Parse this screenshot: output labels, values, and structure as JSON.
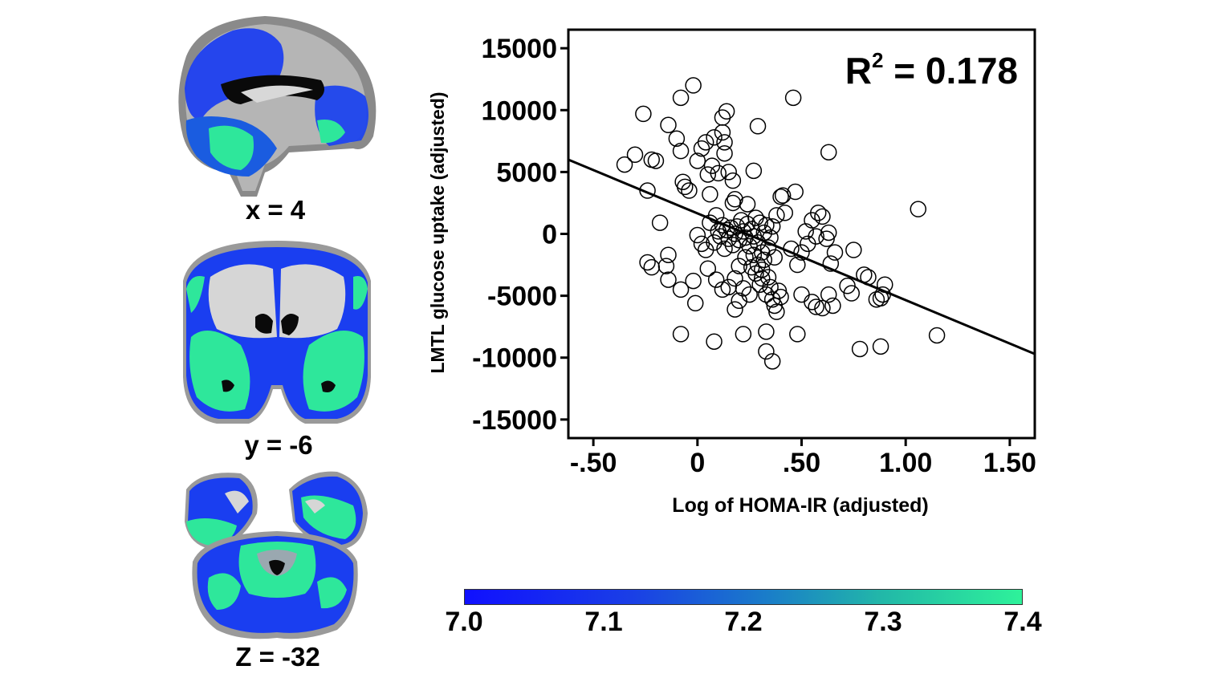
{
  "slices": [
    {
      "label": "x = 4"
    },
    {
      "label": "y = -6"
    },
    {
      "label": "Z = -32"
    }
  ],
  "colorbar": {
    "ticks": [
      "7.0",
      "7.1",
      "7.2",
      "7.3",
      "7.4"
    ],
    "colors": [
      "#1010ff",
      "#2ef29a"
    ]
  },
  "chart_data": {
    "type": "scatter",
    "xlabel": "Log of HOMA-IR (adjusted)",
    "ylabel": "LMTL glucose uptake (adjusted)",
    "annotation": {
      "prefix": "R",
      "superscript": "2",
      "text": " = 0.178"
    },
    "xlim": [
      -0.62,
      1.62
    ],
    "ylim": [
      -16500,
      16500
    ],
    "xticks": [
      -0.5,
      0,
      0.5,
      1.0,
      1.5
    ],
    "xtick_labels": [
      "-.50",
      "0",
      ".50",
      "1.00",
      "1.50"
    ],
    "yticks": [
      15000,
      10000,
      5000,
      0,
      -5000,
      -10000,
      -15000
    ],
    "ytick_labels": [
      "15000",
      "10000",
      "5000",
      "0",
      "-5000",
      "-10000",
      "-15000"
    ],
    "regression_line": {
      "x": [
        -0.62,
        1.62
      ],
      "y": [
        6000,
        -9700
      ]
    },
    "grid": false,
    "points": [
      [
        -0.35,
        5600
      ],
      [
        -0.3,
        6400
      ],
      [
        -0.26,
        9700
      ],
      [
        -0.24,
        3500
      ],
      [
        -0.22,
        6000
      ],
      [
        -0.2,
        5900
      ],
      [
        -0.24,
        -2300
      ],
      [
        -0.22,
        -2700
      ],
      [
        -0.18,
        900
      ],
      [
        -0.15,
        -2600
      ],
      [
        -0.14,
        -3700
      ],
      [
        -0.14,
        -1700
      ],
      [
        -0.14,
        8800
      ],
      [
        -0.1,
        7700
      ],
      [
        -0.08,
        6700
      ],
      [
        -0.08,
        11000
      ],
      [
        -0.02,
        12000
      ],
      [
        -0.07,
        4200
      ],
      [
        -0.06,
        3800
      ],
      [
        -0.04,
        3500
      ],
      [
        -0.08,
        -4500
      ],
      [
        -0.08,
        -8100
      ],
      [
        -0.02,
        -3800
      ],
      [
        -0.01,
        -5600
      ],
      [
        0.0,
        5900
      ],
      [
        0.02,
        6900
      ],
      [
        0.04,
        7400
      ],
      [
        0.05,
        4800
      ],
      [
        0.06,
        3200
      ],
      [
        0.07,
        5500
      ],
      [
        0.08,
        7800
      ],
      [
        0.1,
        4900
      ],
      [
        0.12,
        8200
      ],
      [
        0.13,
        7400
      ],
      [
        0.13,
        6500
      ],
      [
        0.12,
        9400
      ],
      [
        0.14,
        9900
      ],
      [
        0.15,
        5000
      ],
      [
        0.17,
        4300
      ],
      [
        0.18,
        2800
      ],
      [
        0.17,
        2500
      ],
      [
        0.0,
        -100
      ],
      [
        0.02,
        -800
      ],
      [
        0.04,
        -1300
      ],
      [
        0.06,
        900
      ],
      [
        0.08,
        -700
      ],
      [
        0.09,
        1500
      ],
      [
        0.1,
        200
      ],
      [
        0.11,
        -200
      ],
      [
        0.12,
        700
      ],
      [
        0.13,
        -1200
      ],
      [
        0.14,
        300
      ],
      [
        0.15,
        -400
      ],
      [
        0.16,
        500
      ],
      [
        0.17,
        -900
      ],
      [
        0.18,
        0
      ],
      [
        0.19,
        600
      ],
      [
        0.2,
        -500
      ],
      [
        0.21,
        1100
      ],
      [
        0.22,
        200
      ],
      [
        0.23,
        -300
      ],
      [
        0.24,
        800
      ],
      [
        0.25,
        -1000
      ],
      [
        0.26,
        400
      ],
      [
        0.27,
        -200
      ],
      [
        0.28,
        1300
      ],
      [
        0.29,
        -700
      ],
      [
        0.3,
        900
      ],
      [
        0.31,
        -1500
      ],
      [
        0.32,
        100
      ],
      [
        0.33,
        700
      ],
      [
        0.34,
        -1100
      ],
      [
        0.35,
        -300
      ],
      [
        0.36,
        600
      ],
      [
        0.37,
        -1900
      ],
      [
        0.38,
        1500
      ],
      [
        0.28,
        -3200
      ],
      [
        0.3,
        -4100
      ],
      [
        0.31,
        -3600
      ],
      [
        0.33,
        -4900
      ],
      [
        0.34,
        -3500
      ],
      [
        0.35,
        -4300
      ],
      [
        0.36,
        -5300
      ],
      [
        0.37,
        -5800
      ],
      [
        0.38,
        -6300
      ],
      [
        0.39,
        -4600
      ],
      [
        0.4,
        -5100
      ],
      [
        0.4,
        3000
      ],
      [
        0.41,
        3100
      ],
      [
        0.42,
        1700
      ],
      [
        0.45,
        -1200
      ],
      [
        0.47,
        3400
      ],
      [
        0.48,
        -2500
      ],
      [
        0.5,
        -1500
      ],
      [
        0.52,
        200
      ],
      [
        0.53,
        -800
      ],
      [
        0.55,
        1100
      ],
      [
        0.57,
        -200
      ],
      [
        0.58,
        1700
      ],
      [
        0.6,
        1400
      ],
      [
        0.62,
        -400
      ],
      [
        0.63,
        100
      ],
      [
        0.64,
        -2400
      ],
      [
        0.66,
        -1500
      ],
      [
        0.5,
        -4900
      ],
      [
        0.55,
        -5500
      ],
      [
        0.57,
        -5900
      ],
      [
        0.6,
        -6000
      ],
      [
        0.63,
        -4900
      ],
      [
        0.65,
        -5800
      ],
      [
        0.72,
        -4200
      ],
      [
        0.74,
        -4800
      ],
      [
        0.75,
        -1300
      ],
      [
        0.8,
        -3300
      ],
      [
        0.82,
        -3500
      ],
      [
        0.86,
        -5300
      ],
      [
        0.88,
        -5200
      ],
      [
        0.89,
        -4900
      ],
      [
        0.9,
        -4100
      ],
      [
        0.78,
        -9300
      ],
      [
        0.88,
        -9100
      ],
      [
        1.06,
        2000
      ],
      [
        1.15,
        -8200
      ],
      [
        0.63,
        6600
      ],
      [
        0.46,
        11000
      ],
      [
        0.29,
        8700
      ],
      [
        0.27,
        5100
      ],
      [
        0.24,
        2400
      ],
      [
        0.2,
        -2600
      ],
      [
        0.18,
        -3600
      ],
      [
        0.15,
        -4300
      ],
      [
        0.12,
        -4500
      ],
      [
        0.09,
        -3700
      ],
      [
        0.05,
        -2800
      ],
      [
        0.18,
        -6100
      ],
      [
        0.2,
        -5400
      ],
      [
        0.22,
        -4400
      ],
      [
        0.25,
        -4900
      ],
      [
        0.22,
        -8100
      ],
      [
        0.33,
        -7900
      ],
      [
        0.33,
        -9500
      ],
      [
        0.36,
        -10300
      ],
      [
        0.48,
        -8100
      ],
      [
        0.08,
        -8700
      ],
      [
        0.27,
        -1700
      ],
      [
        0.29,
        -2500
      ],
      [
        0.31,
        -2900
      ],
      [
        0.32,
        -2100
      ],
      [
        0.26,
        -2700
      ],
      [
        0.23,
        -1900
      ]
    ]
  }
}
